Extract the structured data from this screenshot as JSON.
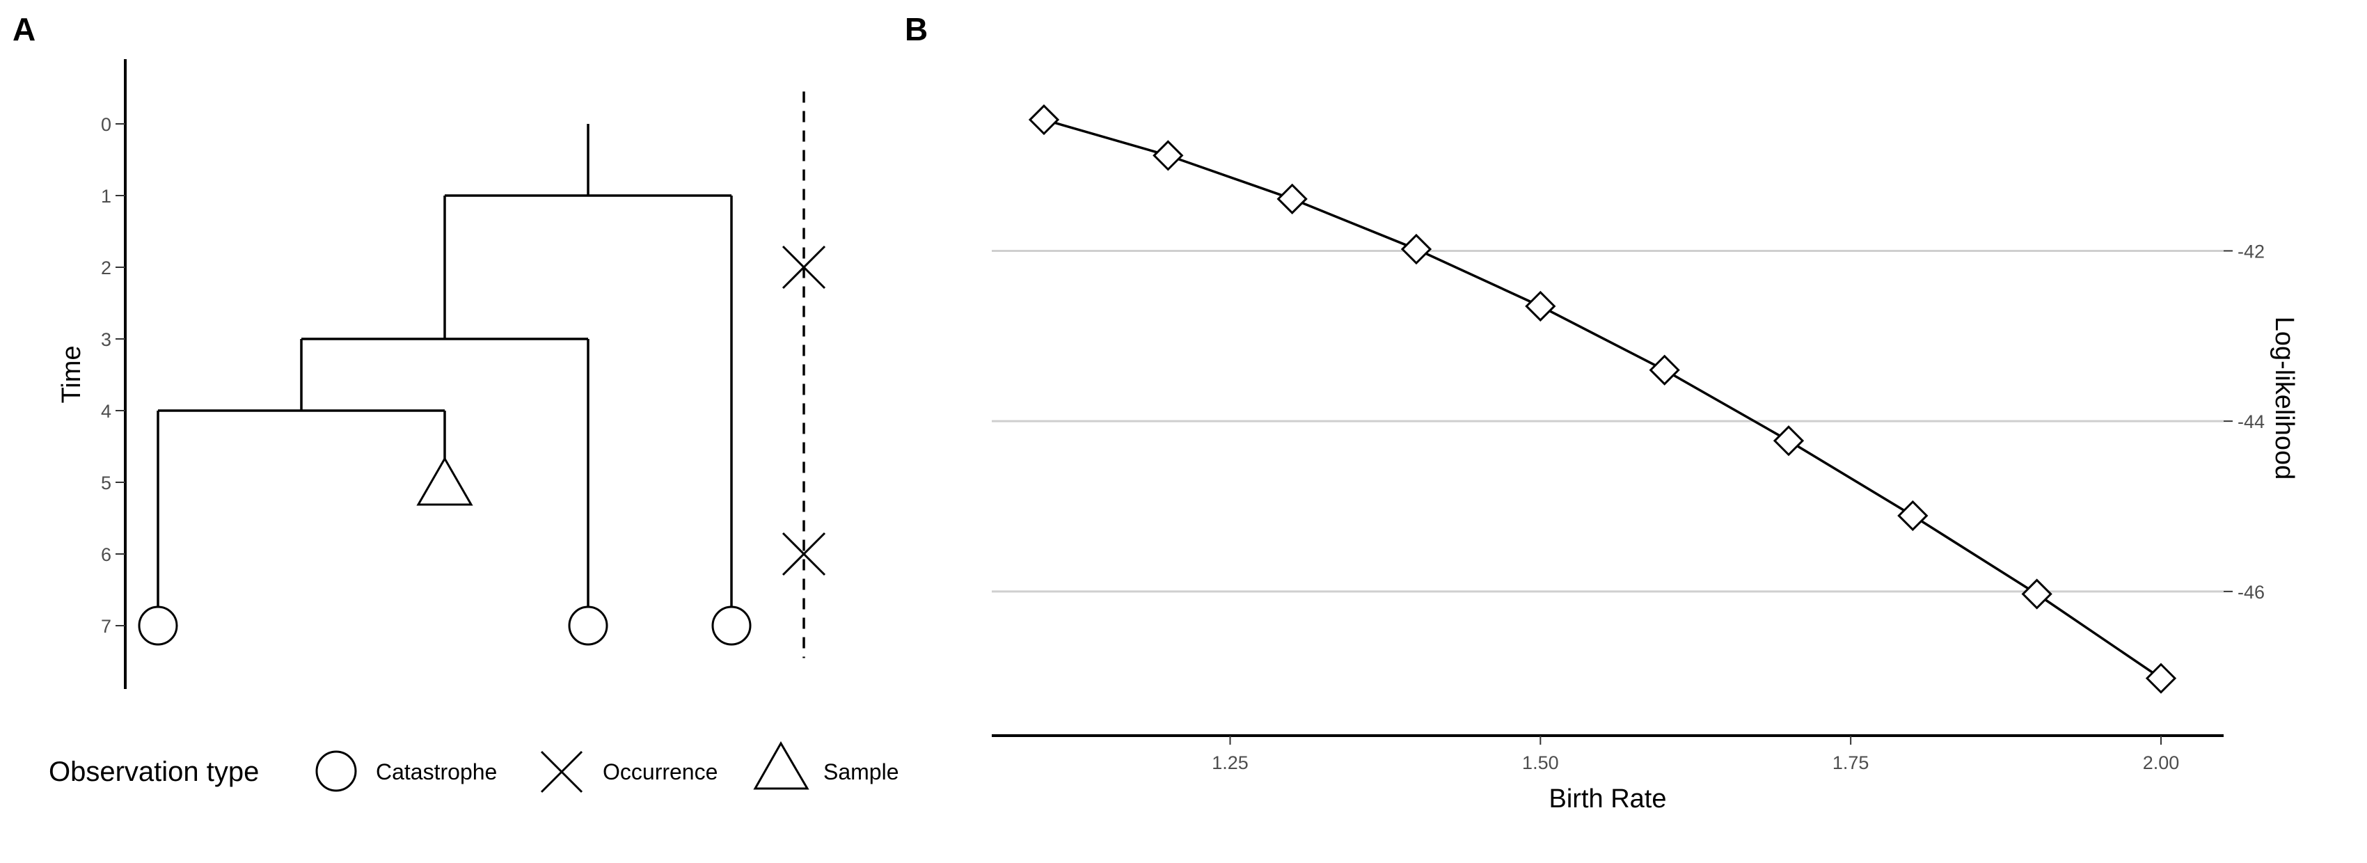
{
  "panel_a": {
    "label": "A",
    "y_axis_title": "Time",
    "legend": {
      "title": "Observation type",
      "items": [
        {
          "label": "Catastrophe",
          "shape": "circle-icon"
        },
        {
          "label": "Occurrence",
          "shape": "cross-icon"
        },
        {
          "label": "Sample",
          "shape": "triangle-icon"
        }
      ]
    }
  },
  "panel_b": {
    "label": "B"
  },
  "chart_data": [
    {
      "type": "tree",
      "ylabel": "Time",
      "ylim": [
        0,
        7
      ],
      "y_reversed": true,
      "yticks": [
        0,
        1,
        2,
        3,
        4,
        5,
        6,
        7
      ],
      "tips": [
        {
          "x": 0,
          "time": 7,
          "type": "Catastrophe"
        },
        {
          "x": 2,
          "time": 5,
          "type": "Sample"
        },
        {
          "x": 3,
          "time": 7,
          "type": "Catastrophe"
        },
        {
          "x": 4,
          "time": 7,
          "type": "Catastrophe"
        }
      ],
      "internal_nodes": [
        {
          "children": [
            0,
            2
          ],
          "x_left": 0,
          "x_right": 2,
          "time": 4
        },
        {
          "x_left": 1,
          "x_right": 3,
          "time": 3
        },
        {
          "x_left": 2,
          "x_right": 4,
          "time": 1
        }
      ],
      "root": {
        "x": 3,
        "time_start": 0,
        "time_end": 1
      },
      "occurrence_line": {
        "time_start": -0.5,
        "time_end": 7.5,
        "occurrences": [
          2,
          6
        ]
      }
    },
    {
      "type": "line",
      "xlabel": "Birth Rate",
      "ylabel": "Log-likelihood",
      "x": [
        1.1,
        1.2,
        1.3,
        1.4,
        1.5,
        1.6,
        1.7,
        1.8,
        1.9,
        2.0
      ],
      "series": [
        {
          "values": [
            -40.46,
            -40.88,
            -41.39,
            -41.98,
            -42.65,
            -43.4,
            -44.23,
            -45.11,
            -46.03,
            -47.02
          ]
        }
      ],
      "xticks": [
        1.25,
        1.5,
        1.75,
        2.0
      ],
      "xtick_labels": [
        "1.25",
        "1.50",
        "1.75",
        "2.00"
      ],
      "yticks": [
        -42,
        -44,
        -46
      ],
      "ytick_labels": [
        "-42",
        "-44",
        "-46"
      ],
      "xlim": [
        1.1,
        2.0
      ],
      "ylim": [
        -47.35,
        -40.1
      ],
      "marker": "diamond",
      "y_axis_position": "right",
      "grid": "horizontal-major"
    }
  ]
}
